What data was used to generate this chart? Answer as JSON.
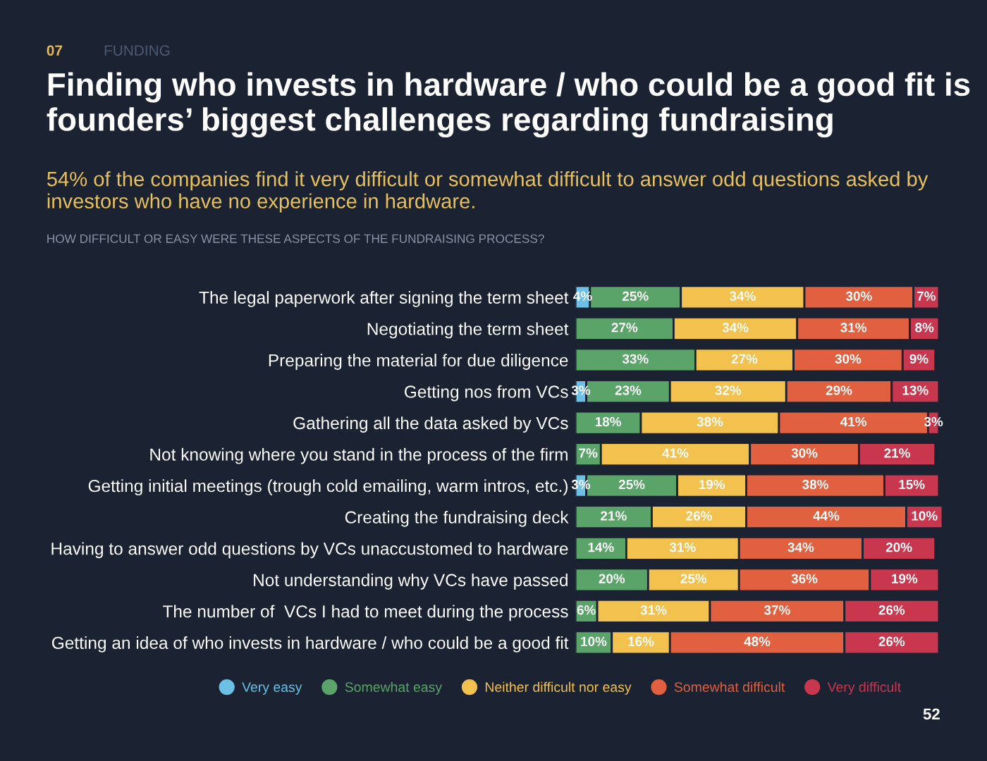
{
  "chart_data": {
    "type": "bar",
    "orientation": "horizontal",
    "stacked": true,
    "title": "Finding who invests in hardware / who could be a good fit is founders’ biggest challenges regarding fundraising",
    "subtitle": "54% of the companies find it very difficult or somewhat difficult to answer odd questions asked by investors who have no experience in hardware.",
    "annotations": [
      "07",
      "FUNDING",
      "HOW DIFFICULT OR EASY WERE THESE ASPECTS OF THE FUNDRAISING PROCESS?",
      "52"
    ],
    "categories": [
      "The legal paperwork after signing the term sheet",
      "Negotiating the term sheet",
      "Preparing the material for due diligence",
      "Getting nos from VCs",
      "Gathering all the data asked by VCs",
      "Not knowing where you stand in the process of the firm",
      "Getting initial meetings (trough cold emailing, warm intros, etc.)",
      "Creating the fundraising deck",
      "Having to answer odd questions by VCs unaccustomed to hardware",
      "Not understanding why VCs have passed",
      "The number of  VCs I had to meet during the process",
      "Getting an idea of who invests in hardware / who could be a good fit"
    ],
    "series": [
      {
        "name": "Very easy",
        "color": "#6cc0e5",
        "values": [
          4,
          null,
          null,
          3,
          null,
          null,
          3,
          null,
          null,
          null,
          null,
          null
        ],
        "value_labels": [
          "4%",
          null,
          null,
          "3%",
          null,
          null,
          "3%",
          null,
          null,
          null,
          null,
          null
        ]
      },
      {
        "name": "Somewhat easy",
        "color": "#5aa469",
        "values": [
          25,
          27,
          33,
          23,
          18,
          7,
          25,
          21,
          14,
          20,
          6,
          10
        ],
        "value_labels": [
          "25%",
          "27%",
          "33%",
          "23%",
          "18%",
          "7%",
          "25%",
          "21%",
          "14%",
          "20%",
          "6%",
          "10%"
        ]
      },
      {
        "name": "Neither difficult nor easy",
        "color": "#f2c14e",
        "values": [
          34,
          34,
          27,
          32,
          38,
          41,
          19,
          26,
          31,
          25,
          31,
          16
        ],
        "value_labels": [
          "34%",
          "34%",
          "27%",
          "32%",
          "38%",
          "41%",
          "19%",
          "26%",
          "31%",
          "25%",
          "31%",
          "16%"
        ]
      },
      {
        "name": "Somewhat difficult",
        "color": "#e0603f",
        "values": [
          30,
          31,
          30,
          29,
          41,
          30,
          38,
          44,
          34,
          36,
          37,
          48
        ],
        "value_labels": [
          "30%",
          "31%",
          "30%",
          "29%",
          "41%",
          "30%",
          "38%",
          "44%",
          "34%",
          "36%",
          "37%",
          "48%"
        ]
      },
      {
        "name": "Very difficult",
        "color": "#c9374f",
        "values": [
          7,
          8,
          9,
          13,
          3,
          21,
          15,
          10,
          20,
          19,
          26,
          26
        ],
        "value_labels": [
          "7%",
          "8%",
          "9%",
          "13%",
          "3%",
          "21%",
          "15%",
          "10%",
          "20%",
          "19%",
          "26%",
          "26%"
        ]
      }
    ],
    "xlim": [
      0,
      101
    ],
    "tick_labels": "y",
    "legend": "bottom",
    "grid": false
  }
}
